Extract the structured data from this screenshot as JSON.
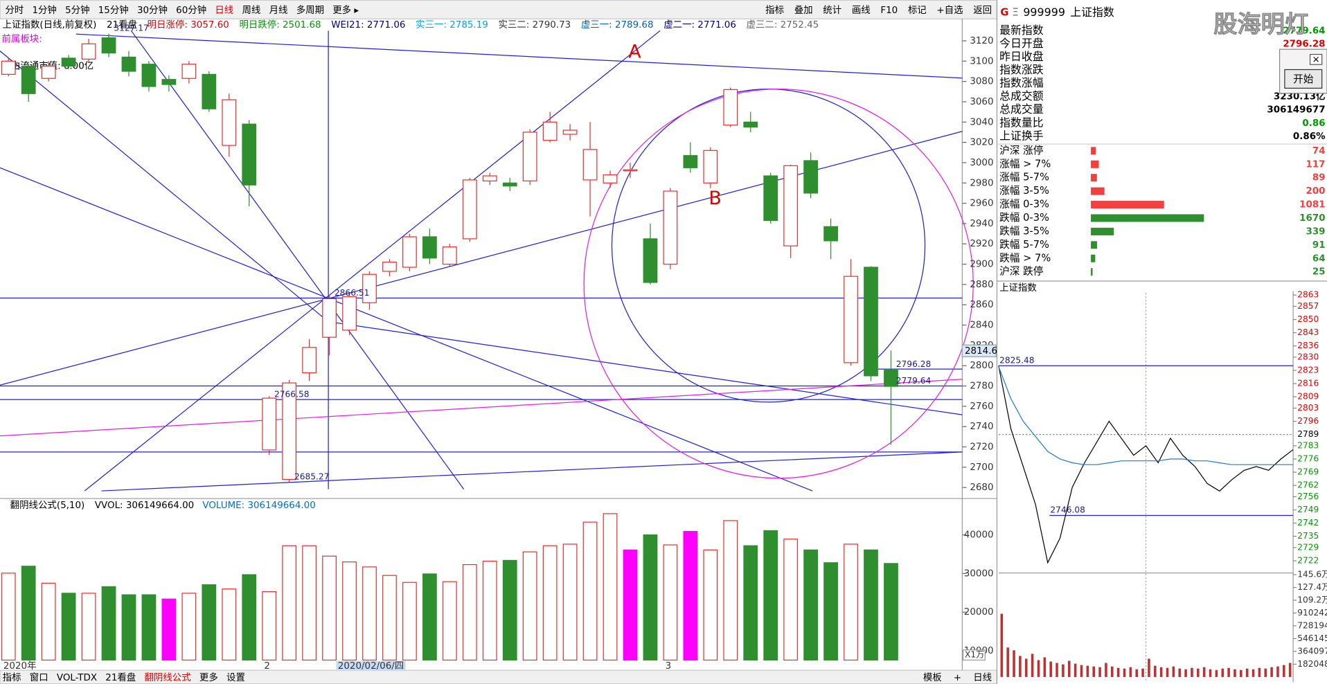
{
  "toolbar": {
    "left": [
      "分时",
      "1分钟",
      "5分钟",
      "15分钟",
      "30分钟",
      "60分钟",
      "日线",
      "周线",
      "月线",
      "多周期",
      "更多 ▸"
    ],
    "active": 6,
    "right": [
      "指标",
      "叠加",
      "统计",
      "画线",
      "F10",
      "标记",
      "+自选",
      "返回"
    ]
  },
  "info_bar": {
    "title": "上证指数(日线,前复权)",
    "items": [
      {
        "text": "21看盘",
        "color": "#000000"
      },
      {
        "text": "明日涨停: 3057.60",
        "color": "#e00000"
      },
      {
        "text": "明日跌停: 2501.68",
        "color": "#009900"
      },
      {
        "text": "WEI21: 2771.06",
        "color": "#000080"
      },
      {
        "text": "实三一: 2785.19",
        "color": "#00a0e0"
      },
      {
        "text": "实三二: 2790.73",
        "color": "#333333"
      },
      {
        "text": "虚三一: 2789.68",
        "color": "#0060c0"
      },
      {
        "text": "虚二一: 2771.06",
        "color": "#000080"
      },
      {
        "text": "虚三二: 2752.45",
        "color": "#666666"
      }
    ]
  },
  "side_notes": [
    {
      "text": "前属板块:",
      "color": "#e000e0"
    },
    {
      "text": "自由流通市值: 0.00亿",
      "color": "#000000"
    }
  ],
  "drawing_labels": [
    "A",
    "B"
  ],
  "chart_data": [
    {
      "type": "candlestick",
      "up_color": "#e8312f",
      "down_color": "#2f8f2f",
      "categories": [
        "2020年",
        null,
        null,
        null,
        null,
        null,
        null,
        null,
        null,
        null,
        null,
        null,
        null,
        "2",
        null,
        null,
        "2020/02/06/四",
        null,
        null,
        null,
        null,
        null,
        null,
        null,
        null,
        null,
        null,
        null,
        null,
        null,
        null,
        null,
        null,
        "3",
        null,
        null,
        null,
        null,
        null,
        null,
        null,
        null,
        null,
        null,
        null
      ],
      "open": [
        3087,
        3095,
        3083,
        3103,
        3102,
        3123,
        3104,
        3097,
        3082,
        3083,
        3087,
        3017,
        3038,
        2717,
        2688,
        2793,
        2828,
        2835,
        2862,
        2893,
        2897,
        2927,
        2900,
        2925,
        2982,
        2980,
        2982,
        3022,
        3028,
        2983,
        2980,
        2992,
        2925,
        2900,
        3007,
        2980,
        3037,
        3040,
        2987,
        2918,
        3002,
        2937,
        2803,
        2897,
        2796.28
      ],
      "high": [
        3103,
        3097,
        3100,
        3106,
        3122,
        3127.17,
        3110,
        3100,
        3086,
        3100,
        3090,
        3068,
        3042,
        2770,
        2786,
        2826,
        2870,
        2872,
        2893,
        2905,
        2930,
        2935,
        2920,
        2985,
        2990,
        2985,
        3033,
        3050,
        3038,
        3040,
        2992,
        3000,
        2940,
        2975,
        3020,
        3015,
        3074,
        3050,
        2990,
        2998,
        3010,
        2945,
        2905,
        2898,
        2815
      ],
      "low": [
        3085,
        3060,
        3080,
        3092,
        3098,
        3104,
        3085,
        3070,
        3070,
        3078,
        3050,
        3006,
        2957,
        2712,
        2685.27,
        2785,
        2810,
        2830,
        2855,
        2888,
        2893,
        2900,
        2898,
        2922,
        2978,
        2972,
        2978,
        3020,
        3022,
        2947,
        2975,
        2985,
        2880,
        2895,
        2990,
        2975,
        3035,
        3030,
        2940,
        2906,
        2965,
        2905,
        2800,
        2785,
        2722
      ],
      "close": [
        3100,
        3068,
        3095,
        3095,
        3117,
        3108,
        3090,
        3075,
        3077,
        3097,
        3053,
        3062,
        2978,
        2768,
        2783,
        2818,
        2866,
        2868,
        2890,
        2902,
        2927,
        2906,
        2917,
        2983,
        2987,
        2977,
        3030,
        3040,
        3032,
        3013,
        2988,
        2993,
        2882,
        2972,
        2995,
        3012,
        3072,
        3035,
        2943,
        2997,
        2970,
        2923,
        2888,
        2790,
        2779.64
      ],
      "ylim": [
        2670,
        3130
      ],
      "yticks": [
        3120,
        3100,
        3080,
        3060,
        3040,
        3020,
        3000,
        2980,
        2960,
        2940,
        2920,
        2900,
        2880,
        2860,
        2840,
        2820,
        2800,
        2780,
        2760,
        2740,
        2720,
        2700,
        2680
      ],
      "crosshair_index": 16,
      "crosshair_value": 2814.6,
      "annotations": [
        {
          "value": 3127.17,
          "index": 5
        },
        {
          "value": 2866.51,
          "index": 16
        },
        {
          "value": 2766.58,
          "index": 13
        },
        {
          "value": 2685.27,
          "index": 14
        },
        {
          "value": 2796.28,
          "index": 44
        },
        {
          "value": 2779.64,
          "index": 44
        }
      ]
    },
    {
      "type": "bar",
      "title": "翻阴线公式(5,10)",
      "legend": [
        {
          "text": "VVOL: 306149664.00",
          "color": "#000000"
        },
        {
          "text": "VOLUME: 306149664.00",
          "color": "#0070c0"
        }
      ],
      "up_color": "#e8312f",
      "unit": "X1万",
      "values": [
        30100,
        31900,
        27500,
        24900,
        24900,
        26600,
        24500,
        24500,
        23400,
        24900,
        27100,
        26000,
        29700,
        25300,
        37200,
        37200,
        34500,
        33000,
        31700,
        29500,
        27700,
        29900,
        27900,
        32300,
        33200,
        33400,
        35600,
        37200,
        37600,
        43300,
        45500,
        36100,
        40000,
        37400,
        40900,
        36100,
        43700,
        37200,
        41100,
        38900,
        36100,
        32800,
        37600,
        36100,
        32600
      ],
      "colors": [
        "#e8312f",
        "#2f8f2f",
        "#e8312f",
        "#2f8f2f",
        "#e8312f",
        "#2f8f2f",
        "#2f8f2f",
        "#2f8f2f",
        "#ff00ff",
        "#e8312f",
        "#2f8f2f",
        "#e8312f",
        "#2f8f2f",
        "#e8312f",
        "#e8312f",
        "#e8312f",
        "#e8312f",
        "#e8312f",
        "#e8312f",
        "#e8312f",
        "#e8312f",
        "#2f8f2f",
        "#e8312f",
        "#e8312f",
        "#e8312f",
        "#2f8f2f",
        "#e8312f",
        "#e8312f",
        "#e8312f",
        "#e8312f",
        "#e8312f",
        "#ff00ff",
        "#2f8f2f",
        "#e8312f",
        "#ff00ff",
        "#e8312f",
        "#e8312f",
        "#2f8f2f",
        "#2f8f2f",
        "#e8312f",
        "#2f8f2f",
        "#2f8f2f",
        "#e8312f",
        "#2f8f2f",
        "#2f8f2f"
      ],
      "ylim": [
        7600,
        48750
      ],
      "yticks": [
        40000,
        30000,
        20000,
        10000
      ]
    },
    {
      "type": "line",
      "title": "上证指数",
      "series": [
        {
          "name": "指数",
          "color": "#000000",
          "values": [
            2825.48,
            2792,
            2772,
            2752,
            2721,
            2734,
            2761,
            2774,
            2785,
            2796,
            2787,
            2778,
            2783,
            2774,
            2787,
            2778,
            2772,
            2763,
            2759,
            2765,
            2770,
            2772,
            2770,
            2776,
            2781
          ]
        },
        {
          "name": "均价",
          "color": "#1e7bc8",
          "values": [
            2825,
            2808,
            2796,
            2788,
            2780,
            2776,
            2774,
            2773,
            2773,
            2774,
            2775,
            2775,
            2775,
            2775,
            2776,
            2776,
            2775,
            2775,
            2774,
            2773,
            2773,
            2773,
            2773,
            2773,
            2773
          ]
        }
      ],
      "ylim": [
        2716,
        2865
      ],
      "yticks": [
        2863,
        2857,
        2850,
        2843,
        2836,
        2830,
        2823,
        2816,
        2809,
        2803,
        2796,
        2789,
        2783,
        2776,
        2769,
        2762,
        2756,
        2749,
        2742,
        2735,
        2729,
        2722
      ],
      "annotations": [
        {
          "value": 2825.48
        },
        {
          "value": 2746.08
        }
      ]
    },
    {
      "type": "bar",
      "color": "#c03030",
      "values": [
        900000,
        420000,
        380000,
        300000,
        260000,
        330000,
        240000,
        280000,
        220000,
        200000,
        180000,
        230000,
        190000,
        170000,
        160000,
        150000,
        140000,
        200000,
        150000,
        130000,
        120000,
        140000,
        110000,
        120000,
        260000,
        160000,
        140000,
        130000,
        150000,
        120000,
        110000,
        130000,
        120000,
        140000,
        110000,
        100000,
        120000,
        130000,
        110000,
        100000,
        120000,
        110000,
        130000,
        120000,
        140000,
        150000,
        170000,
        200000
      ],
      "ylim": [
        0,
        1456000
      ],
      "yticks": [
        {
          "value": 1456000,
          "label": "145.6万"
        },
        {
          "value": 1274000,
          "label": "127.4万"
        },
        {
          "value": 1092000,
          "label": "109.2万"
        },
        910242,
        728194,
        546145,
        364097,
        182048
      ]
    },
    {
      "type": "hbar",
      "categories": [
        "沪深 涨停",
        "涨幅 > 7%",
        "涨幅 5-7%",
        "涨幅 3-5%",
        "涨幅 0-3%",
        "跌幅 0-3%",
        "跌幅 3-5%",
        "跌幅 5-7%",
        "跌幅 > 7%",
        "沪深 跌停"
      ],
      "values": [
        74,
        117,
        89,
        200,
        1081,
        1670,
        339,
        91,
        64,
        25
      ],
      "colors": [
        "#f04040",
        "#f04040",
        "#f04040",
        "#f04040",
        "#f04040",
        "#2f8f2f",
        "#2f8f2f",
        "#2f8f2f",
        "#2f8f2f",
        "#2f8f2f"
      ]
    }
  ],
  "quote_panel": {
    "icons": [
      "G",
      "Ξ"
    ],
    "code": "999999",
    "name": "上证指数",
    "rows": [
      {
        "label": "最新指数",
        "value": 2779.64,
        "color": "#009900"
      },
      {
        "label": "今日开盘",
        "value": 2796.28,
        "color": "#e00000"
      },
      {
        "label": "昨日收盘"
      },
      {
        "label": "指数涨跌"
      },
      {
        "label": "指数涨幅"
      },
      {
        "label": "总成交额",
        "value": "3230.13亿",
        "color": "#000000"
      },
      {
        "label": "总成交量",
        "value": 306149677,
        "color": "#000000"
      },
      {
        "label": "指数量比",
        "value": 0.86,
        "color": "#009900"
      },
      {
        "label": "上证换手",
        "value": "0.86%",
        "color": "#000000"
      }
    ]
  },
  "popup": {
    "button": "开始"
  },
  "watermark": "股海明灯",
  "bottom_tabs": {
    "left": [
      "指标",
      "窗口",
      "VOL-TDX",
      "21看盘",
      "翻阴线公式",
      "更多",
      "设置"
    ],
    "active": 4,
    "right": [
      "模板",
      "+",
      "日线"
    ]
  }
}
